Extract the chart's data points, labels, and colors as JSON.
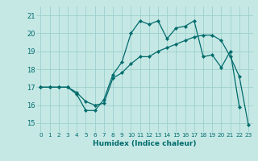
{
  "xlabel": "Humidex (Indice chaleur)",
  "background_color": "#c5e8e5",
  "grid_color": "#9dcfcc",
  "line_color": "#006b6b",
  "xlim": [
    -0.5,
    23.5
  ],
  "ylim": [
    14.5,
    21.5
  ],
  "xticks": [
    0,
    1,
    2,
    3,
    4,
    5,
    6,
    7,
    8,
    9,
    10,
    11,
    12,
    13,
    14,
    15,
    16,
    17,
    18,
    19,
    20,
    21,
    22,
    23
  ],
  "yticks": [
    15,
    16,
    17,
    18,
    19,
    20,
    21
  ],
  "series1_x": [
    0,
    1,
    2,
    3,
    4,
    5,
    6,
    7,
    8,
    9,
    10,
    11,
    12,
    13,
    14,
    15,
    16,
    17,
    18,
    19,
    20,
    21,
    22
  ],
  "series1_y": [
    17.0,
    17.0,
    17.0,
    17.0,
    16.6,
    15.7,
    15.7,
    16.3,
    17.7,
    18.4,
    20.0,
    20.7,
    20.5,
    20.7,
    19.7,
    20.3,
    20.4,
    20.7,
    18.7,
    18.8,
    18.1,
    19.0,
    15.9
  ],
  "series2_x": [
    0,
    1,
    2,
    3,
    4,
    5,
    6,
    7,
    8,
    9,
    10,
    11,
    12,
    13,
    14,
    15,
    16,
    17,
    18,
    19,
    20,
    21,
    22,
    23
  ],
  "series2_y": [
    17.0,
    17.0,
    17.0,
    17.0,
    16.7,
    16.2,
    16.0,
    16.1,
    17.5,
    17.8,
    18.3,
    18.7,
    18.7,
    19.0,
    19.2,
    19.4,
    19.6,
    19.8,
    19.9,
    19.9,
    19.6,
    18.7,
    17.6,
    14.9
  ]
}
